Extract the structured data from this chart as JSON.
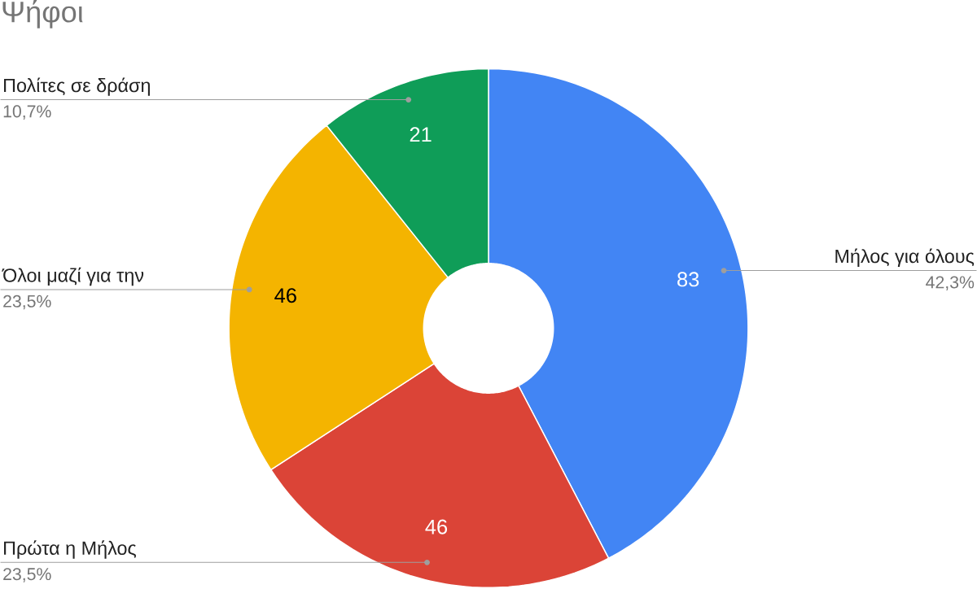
{
  "chart_data": {
    "type": "donut",
    "title": "Ψήφοι",
    "categories": [
      "Μήλος για όλους",
      "Πρώτα η Μήλος",
      "Όλοι μαζί για την",
      "Πολίτες σε δράση"
    ],
    "values": [
      83,
      46,
      46,
      21
    ],
    "colors": [
      "#4285f4",
      "#db4437",
      "#f4b400",
      "#0f9d58"
    ],
    "data_labels": true,
    "annotations": [
      "42,3%",
      "23,5%",
      "23,5%",
      "10,7%"
    ]
  }
}
